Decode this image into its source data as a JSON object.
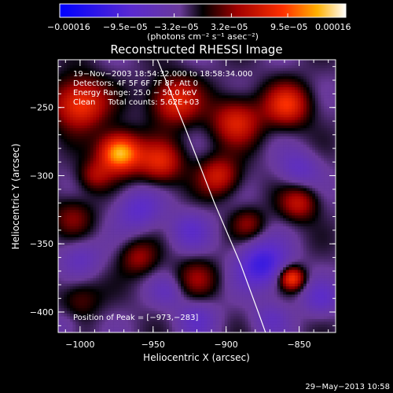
{
  "chart_data": {
    "type": "heatmap",
    "title": "Reconstructed RHESSI Image",
    "xlabel": "Heliocentric X (arcsec)",
    "ylabel": "Heliocentric Y (arcsec)",
    "xlim": [
      -1015,
      -825
    ],
    "ylim": [
      -415,
      -215
    ],
    "x_ticks": [
      -1000,
      -950,
      -900,
      -850
    ],
    "y_ticks": [
      -250,
      -300,
      -350,
      -400
    ],
    "x_tick_labels": [
      "−1000",
      "−950",
      "−900",
      "−850"
    ],
    "y_tick_labels": [
      "−250",
      "−300",
      "−350",
      "−400"
    ],
    "colorbar": {
      "range": [
        -0.00016,
        0.00016
      ],
      "tick_labels": [
        "−0.00016",
        "−9.5e−05",
        "−3.2e−05",
        "3.2e−05",
        "9.5e−05",
        "0.00016"
      ],
      "tick_values": [
        -0.00016,
        -9.5e-05,
        -3.2e-05,
        3.2e-05,
        9.5e-05,
        0.00016
      ],
      "units_label": "(photons cm⁻² s⁻¹ asec⁻²)"
    },
    "info_lines": [
      "19−Nov−2003 18:54:32.000 to 18:58:34.000",
      "Detectors: 4F 5F 6F 7F 8F, Att 0",
      "Energy Range: 25.0 − 50.0 keV",
      "Clean     Total counts: 5.62E+03"
    ],
    "peak_label": "Position of Peak = [−973,−283]",
    "peak": [
      -973,
      -283
    ],
    "limb_curve": [
      [
        -947,
        -215
      ],
      [
        -928,
        -265
      ],
      [
        -908,
        -320
      ],
      [
        -890,
        -365
      ],
      [
        -878,
        -400
      ],
      [
        -873,
        -415
      ]
    ],
    "sources": [
      {
        "x": -973,
        "y": -283,
        "amp": 1.0,
        "r": 10
      },
      {
        "x": -1000,
        "y": -247,
        "amp": 0.7,
        "r": 13
      },
      {
        "x": -935,
        "y": -245,
        "amp": 0.6,
        "r": 12
      },
      {
        "x": -893,
        "y": -260,
        "amp": 0.55,
        "r": 12
      },
      {
        "x": -858,
        "y": -248,
        "amp": 0.6,
        "r": 11
      },
      {
        "x": -945,
        "y": -290,
        "amp": 0.55,
        "r": 11
      },
      {
        "x": -905,
        "y": -300,
        "amp": 0.5,
        "r": 10
      },
      {
        "x": -850,
        "y": -320,
        "amp": 0.45,
        "r": 9
      },
      {
        "x": -1005,
        "y": -330,
        "amp": 0.3,
        "r": 10
      },
      {
        "x": -960,
        "y": -360,
        "amp": 0.35,
        "r": 9
      },
      {
        "x": -920,
        "y": -375,
        "amp": 0.3,
        "r": 10
      },
      {
        "x": -1000,
        "y": -390,
        "amp": 0.25,
        "r": 10
      },
      {
        "x": -855,
        "y": -375,
        "amp": 0.7,
        "r": 6
      },
      {
        "x": -990,
        "y": -300,
        "amp": 0.35,
        "r": 8
      },
      {
        "x": -885,
        "y": -335,
        "amp": 0.3,
        "r": 8
      }
    ],
    "sinks": [
      {
        "x": -875,
        "y": -365,
        "amp": 1.0,
        "r": 12
      },
      {
        "x": -960,
        "y": -325,
        "amp": 0.6,
        "r": 11
      },
      {
        "x": -925,
        "y": -340,
        "amp": 0.5,
        "r": 10
      },
      {
        "x": -850,
        "y": -295,
        "amp": 0.5,
        "r": 10
      },
      {
        "x": -1000,
        "y": -360,
        "amp": 0.45,
        "r": 10
      },
      {
        "x": -920,
        "y": -405,
        "amp": 0.45,
        "r": 10
      },
      {
        "x": -835,
        "y": -390,
        "amp": 0.5,
        "r": 9
      },
      {
        "x": -870,
        "y": -405,
        "amp": 0.4,
        "r": 9
      },
      {
        "x": -1010,
        "y": -410,
        "amp": 0.3,
        "r": 8
      },
      {
        "x": -940,
        "y": -385,
        "amp": 0.35,
        "r": 8
      }
    ]
  },
  "timestamp": "29−May−2013 10:58"
}
